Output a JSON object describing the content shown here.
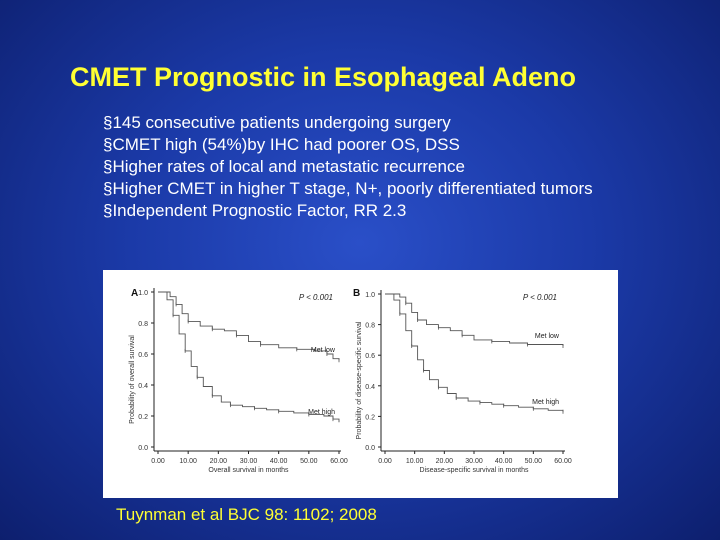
{
  "slide": {
    "title": "CMET Prognostic in Esophageal Adeno",
    "bullets": [
      "§145 consecutive patients undergoing surgery",
      "§CMET high (54%)by IHC had poorer OS, DSS",
      "§Higher rates of local and metastatic recurrence",
      "§Higher CMET in higher T stage, N+, poorly differentiated tumors",
      "§Independent Prognostic Factor, RR 2.3"
    ],
    "citation": "Tuynman et al BJC 98: 1102; 2008",
    "colors": {
      "background": "#1b3aa8",
      "title": "#ffff33",
      "text": "#ffffff",
      "citation": "#ffff33"
    }
  },
  "chart_data": [
    {
      "type": "line",
      "panel_label": "A",
      "pvalue": "P < 0.001",
      "xlabel": "Overall survival in months",
      "ylabel": "Probability of overall survival",
      "xlim": [
        0,
        60
      ],
      "ylim": [
        0,
        1.0
      ],
      "xticks": [
        "0.00",
        "10.00",
        "20.00",
        "30.00",
        "40.00",
        "50.00",
        "60.00"
      ],
      "yticks": [
        "0.0",
        "0.2",
        "0.4",
        "0.6",
        "0.8",
        "1.0"
      ],
      "series": [
        {
          "name": "Met low",
          "x": [
            0,
            4,
            6,
            8,
            10,
            14,
            18,
            22,
            26,
            30,
            34,
            40,
            46,
            52,
            56,
            58,
            60
          ],
          "y": [
            1.0,
            0.97,
            0.92,
            0.86,
            0.81,
            0.78,
            0.76,
            0.75,
            0.72,
            0.68,
            0.66,
            0.64,
            0.63,
            0.62,
            0.6,
            0.57,
            0.56
          ]
        },
        {
          "name": "Met high",
          "x": [
            0,
            3,
            5,
            7,
            9,
            11,
            13,
            15,
            18,
            21,
            24,
            28,
            32,
            36,
            40,
            45,
            50,
            55,
            58,
            60
          ],
          "y": [
            1.0,
            0.95,
            0.85,
            0.73,
            0.62,
            0.52,
            0.45,
            0.39,
            0.33,
            0.29,
            0.27,
            0.26,
            0.25,
            0.24,
            0.23,
            0.22,
            0.21,
            0.2,
            0.18,
            0.16
          ]
        }
      ]
    },
    {
      "type": "line",
      "panel_label": "B",
      "pvalue": "P < 0.001",
      "xlabel": "Disease-specific survival in months",
      "ylabel": "Probability of disease-specific survival",
      "xlim": [
        0,
        60
      ],
      "ylim": [
        0,
        1.0
      ],
      "xticks": [
        "0.00",
        "10.00",
        "20.00",
        "30.00",
        "40.00",
        "50.00",
        "60.00"
      ],
      "yticks": [
        "0.0",
        "0.2",
        "0.4",
        "0.6",
        "0.8",
        "1.0"
      ],
      "series": [
        {
          "name": "Met low",
          "x": [
            0,
            5,
            7,
            9,
            11,
            14,
            18,
            22,
            26,
            30,
            36,
            42,
            48,
            54,
            60
          ],
          "y": [
            1.0,
            0.98,
            0.94,
            0.88,
            0.83,
            0.8,
            0.78,
            0.76,
            0.73,
            0.7,
            0.69,
            0.68,
            0.67,
            0.67,
            0.66
          ]
        },
        {
          "name": "Met high",
          "x": [
            0,
            3,
            5,
            7,
            9,
            11,
            13,
            15,
            18,
            21,
            24,
            28,
            32,
            36,
            40,
            45,
            50,
            55,
            60
          ],
          "y": [
            1.0,
            0.96,
            0.87,
            0.76,
            0.66,
            0.57,
            0.5,
            0.44,
            0.39,
            0.35,
            0.32,
            0.3,
            0.29,
            0.28,
            0.27,
            0.26,
            0.25,
            0.24,
            0.23
          ]
        }
      ]
    }
  ]
}
